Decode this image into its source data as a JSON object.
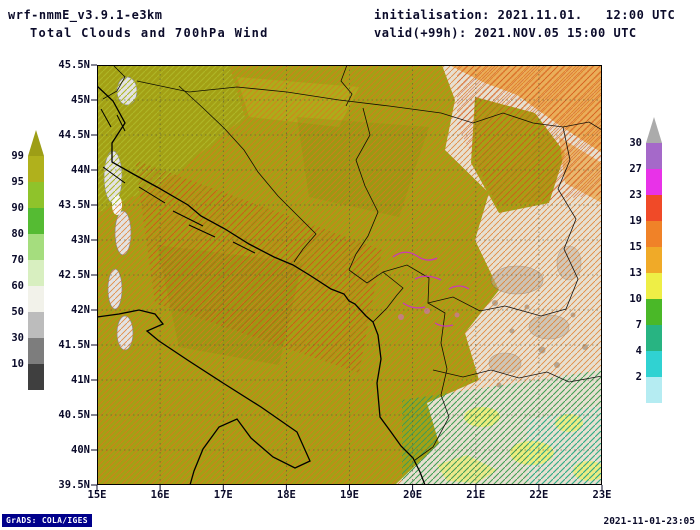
{
  "header": {
    "model": "wrf-nmmE_v3.9.1-e3km",
    "title": "Total Clouds and 700hPa Wind",
    "init": "initialisation: 2021.11.01.   12:00 UTC",
    "valid": "valid(+99h): 2021.NOV.05 15:00 UTC"
  },
  "footer": {
    "grads_credit": "GrADS: COLA/IGES",
    "timestamp": "2021-11-01-23:05"
  },
  "colorbars": {
    "clouds": {
      "labels": [
        "99",
        "95",
        "90",
        "80",
        "70",
        "60",
        "50",
        "30",
        "10"
      ],
      "colors": [
        "#9d9e16",
        "#b0b11c",
        "#8fc32b",
        "#55bb33",
        "#a5dd7e",
        "#d8efc0",
        "#f2f2ea",
        "#bcbcbc",
        "#7d7d7d",
        "#3f3f3f"
      ]
    },
    "wind": {
      "labels": [
        "30",
        "27",
        "23",
        "19",
        "15",
        "13",
        "10",
        "7",
        "4",
        "2"
      ],
      "colors": [
        "#ababab",
        "#a569c9",
        "#e832e8",
        "#f04a28",
        "#f08228",
        "#f0aa28",
        "#eeee46",
        "#4ab828",
        "#28b482",
        "#30d2d2",
        "#b5ecf2"
      ]
    }
  },
  "axes": {
    "lat_labels": [
      "45.5N",
      "45N",
      "44.5N",
      "44N",
      "43.5N",
      "43N",
      "42.5N",
      "42N",
      "41.5N",
      "41N",
      "40.5N",
      "40N",
      "39.5N"
    ],
    "lon_labels": [
      "15E",
      "16E",
      "17E",
      "18E",
      "19E",
      "20E",
      "21E",
      "22E",
      "23E"
    ]
  },
  "map_colors": {
    "cloud_high_olive": "#a3a015",
    "cloud_clear_light": "#e7e0d1",
    "cloud_orange": "#eaa94d",
    "cloud_gray_patch": "#b9ad9d",
    "cloud_yellow_patch": "#eded6e",
    "mountain_gray": "#e3e3e3",
    "wind_orange": "#e0751c",
    "wind_red": "#c83c14",
    "wind_yellowgreen": "#a9bd28",
    "wind_green": "#2aa35c",
    "wind_teal": "#2ab4a2",
    "wind_magenta": "#cf2ecf",
    "coastline": "#000000",
    "gridline": "#55553f"
  },
  "chart_data": {
    "type": "heatmap",
    "title": "Total Clouds and 700hPa Wind",
    "model": "wrf-nmmE_v3.9.1-e3km",
    "initialisation": "2021.11.01. 12:00 UTC",
    "valid": "2021.NOV.05 15:00 UTC (+99h)",
    "lon_range_deg_e": [
      15,
      23
    ],
    "lat_range_deg_n": [
      39.5,
      45.5
    ],
    "lon_ticks": [
      "15E",
      "16E",
      "17E",
      "18E",
      "19E",
      "20E",
      "21E",
      "22E",
      "23E"
    ],
    "lat_ticks": [
      "45.5N",
      "45N",
      "44.5N",
      "44N",
      "43.5N",
      "43N",
      "42.5N",
      "42N",
      "41.5N",
      "41N",
      "40.5N",
      "40N",
      "39.5N"
    ],
    "cloud_levels_percent": [
      10,
      30,
      50,
      60,
      70,
      80,
      90,
      95,
      99
    ],
    "cloud_colors_low_to_high": [
      "#3f3f3f",
      "#7d7d7d",
      "#bcbcbc",
      "#f2f2ea",
      "#d8efc0",
      "#a5dd7e",
      "#55bb33",
      "#8fc32b",
      "#b0b11c",
      "#9d9e16"
    ],
    "wind_levels": [
      2,
      4,
      7,
      10,
      13,
      15,
      19,
      23,
      27,
      30
    ],
    "wind_colors_low_to_high": [
      "#b5ecf2",
      "#30d2d2",
      "#28b482",
      "#4ab828",
      "#eeee46",
      "#f0aa28",
      "#f08228",
      "#f04a28",
      "#e832e8",
      "#a569c9",
      "#ababab"
    ],
    "grid": "dashed 0.5deg lat / 1deg lon",
    "legend_position": "vertical colorbars left (cloud %) and right (wind)",
    "field_summary": [
      "Near-total cloud cover 95-99% (olive shading) over the Adriatic Sea, Croatia, Bosnia, Montenegro and southern Italy",
      "Broken cloud 10-60% (gray/white shading) over eastern Serbia and along the 15E mountain ridges",
      "Orange-shaded cloud deck in the northeastern corner of the domain",
      "Yellow low-cloud patches over Macedonia and northern Greece",
      "700hPa flow from the southwest, mostly 15-23 (orange/red streamlines), locally 23-27 (magenta) over the central mountains",
      "Weaker 7-13 flow (green/teal streamlines) in the southeastern corner, yellow-green flow in the northwest corner"
    ]
  }
}
